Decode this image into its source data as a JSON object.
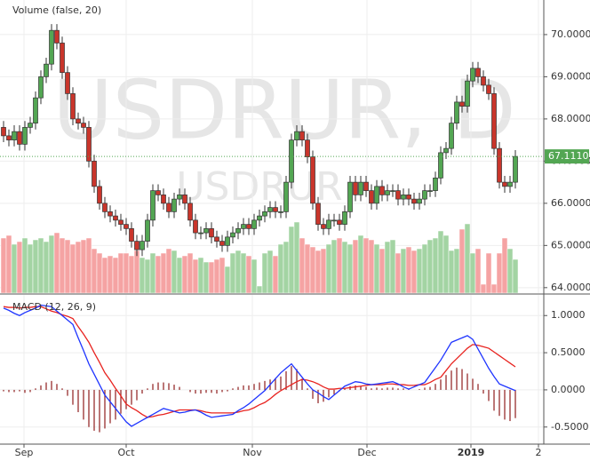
{
  "chart_data": [
    {
      "type": "candlestick",
      "watermark": {
        "symbol_interval": "USDRUR, D",
        "symbol": "USDRUR"
      },
      "indicator_label": "Volume (false, 20)",
      "x_labels": [
        "Sep",
        "Oct",
        "Nov",
        "Dec",
        "2019",
        "2"
      ],
      "series": {
        "open": [
          67.8,
          67.6,
          67.5,
          67.7,
          67.4,
          67.8,
          67.9,
          68.5,
          69.0,
          69.3,
          70.1,
          69.8,
          69.1,
          68.6,
          68.0,
          67.9,
          67.8,
          67.0,
          66.4,
          66.0,
          65.8,
          65.7,
          65.6,
          65.5,
          65.4,
          65.1,
          64.9,
          65.1,
          65.6,
          66.3,
          66.2,
          66.0,
          65.8,
          66.1,
          66.2,
          66.0,
          65.6,
          65.3,
          65.3,
          65.4,
          65.2,
          65.1,
          65.0,
          65.2,
          65.3,
          65.4,
          65.5,
          65.4,
          65.6,
          65.7,
          65.8,
          65.9,
          65.8,
          65.8,
          66.5,
          67.5,
          67.7,
          67.5,
          67.1,
          66.0,
          65.5,
          65.4,
          65.6,
          65.6,
          65.5,
          65.8,
          66.5,
          66.2,
          66.5,
          66.3,
          66.0,
          66.4,
          66.2,
          66.3,
          66.3,
          66.1,
          66.2,
          66.1,
          66.0,
          66.1,
          66.3,
          66.3,
          66.6,
          67.2,
          67.3,
          67.9,
          68.4,
          68.3,
          68.9,
          69.2,
          69.0,
          68.8,
          68.6,
          67.3,
          66.5,
          66.4,
          66.5
        ],
        "high": [
          67.95,
          67.75,
          67.85,
          67.85,
          67.95,
          68.05,
          68.65,
          69.15,
          69.45,
          70.25,
          70.25,
          69.95,
          69.25,
          68.75,
          68.15,
          68.05,
          67.95,
          67.15,
          66.55,
          66.15,
          65.95,
          65.85,
          65.75,
          65.65,
          65.55,
          65.25,
          65.25,
          65.75,
          66.45,
          66.45,
          66.35,
          66.15,
          66.25,
          66.35,
          66.35,
          66.15,
          65.75,
          65.45,
          65.55,
          65.55,
          65.35,
          65.25,
          65.35,
          65.45,
          65.55,
          65.65,
          65.65,
          65.75,
          65.85,
          65.95,
          66.05,
          66.05,
          65.95,
          66.65,
          67.65,
          67.85,
          67.85,
          67.65,
          67.25,
          66.15,
          65.65,
          65.75,
          65.75,
          65.75,
          65.95,
          66.65,
          66.65,
          66.65,
          66.65,
          66.45,
          66.55,
          66.55,
          66.45,
          66.45,
          66.45,
          66.35,
          66.35,
          66.25,
          66.25,
          66.45,
          66.45,
          66.75,
          67.35,
          67.45,
          68.05,
          68.55,
          68.55,
          69.05,
          69.35,
          69.35,
          69.15,
          68.95,
          68.75,
          67.45,
          66.65,
          66.65,
          67.26
        ],
        "low": [
          67.45,
          67.35,
          67.35,
          67.25,
          67.25,
          67.65,
          67.75,
          68.35,
          68.85,
          69.15,
          69.65,
          68.95,
          68.45,
          67.85,
          67.75,
          67.65,
          66.85,
          66.25,
          65.85,
          65.65,
          65.55,
          65.45,
          65.35,
          65.25,
          64.95,
          64.75,
          64.75,
          64.95,
          65.45,
          66.05,
          65.85,
          65.65,
          65.65,
          65.95,
          65.85,
          65.45,
          65.15,
          65.15,
          65.15,
          65.05,
          64.95,
          64.85,
          64.85,
          65.05,
          65.15,
          65.25,
          65.25,
          65.25,
          65.45,
          65.55,
          65.65,
          65.65,
          65.65,
          65.65,
          66.35,
          67.35,
          67.35,
          66.95,
          65.85,
          65.35,
          65.25,
          65.25,
          65.45,
          65.35,
          65.35,
          65.65,
          66.05,
          66.05,
          66.15,
          65.85,
          65.85,
          66.05,
          66.05,
          66.15,
          65.95,
          65.95,
          65.95,
          65.85,
          65.85,
          65.95,
          66.15,
          66.15,
          66.45,
          67.05,
          67.15,
          67.75,
          68.15,
          68.15,
          68.75,
          68.85,
          68.65,
          68.45,
          67.15,
          66.35,
          66.25,
          66.25,
          66.35
        ],
        "close": [
          67.6,
          67.5,
          67.7,
          67.4,
          67.8,
          67.9,
          68.5,
          69.0,
          69.3,
          70.1,
          69.8,
          69.1,
          68.6,
          68.0,
          67.9,
          67.8,
          67.0,
          66.4,
          66.0,
          65.8,
          65.7,
          65.6,
          65.5,
          65.4,
          65.1,
          64.9,
          65.1,
          65.6,
          66.3,
          66.2,
          66.0,
          65.8,
          66.1,
          66.2,
          66.0,
          65.6,
          65.3,
          65.3,
          65.4,
          65.2,
          65.1,
          65.0,
          65.2,
          65.3,
          65.4,
          65.5,
          65.4,
          65.6,
          65.7,
          65.8,
          65.9,
          65.8,
          65.8,
          66.5,
          67.5,
          67.7,
          67.5,
          67.1,
          66.0,
          65.5,
          65.4,
          65.6,
          65.6,
          65.5,
          65.8,
          66.5,
          66.2,
          66.5,
          66.3,
          66.0,
          66.4,
          66.2,
          66.3,
          66.3,
          66.1,
          66.2,
          66.1,
          66.0,
          66.1,
          66.3,
          66.3,
          66.6,
          67.2,
          67.3,
          67.9,
          68.4,
          68.3,
          68.9,
          69.2,
          69.0,
          68.8,
          68.6,
          67.3,
          66.5,
          66.4,
          66.5,
          67.111
        ]
      },
      "up_color": "#53a653",
      "down_color": "#c9352b",
      "volume": {
        "up_color": "#a3d4a3",
        "down_color": "#f5a3a3",
        "values": [
          62,
          65,
          55,
          58,
          62,
          55,
          60,
          62,
          58,
          65,
          68,
          62,
          60,
          55,
          58,
          60,
          62,
          50,
          45,
          40,
          42,
          40,
          45,
          45,
          42,
          48,
          40,
          38,
          45,
          42,
          45,
          50,
          48,
          40,
          42,
          45,
          38,
          40,
          35,
          35,
          38,
          40,
          30,
          45,
          48,
          45,
          42,
          38,
          8,
          45,
          48,
          42,
          55,
          58,
          75,
          80,
          62,
          55,
          52,
          48,
          50,
          55,
          60,
          62,
          58,
          55,
          60,
          65,
          62,
          60,
          55,
          50,
          58,
          60,
          45,
          50,
          52,
          48,
          50,
          55,
          60,
          62,
          70,
          65,
          48,
          50,
          72,
          78,
          45,
          50,
          10,
          45,
          10,
          45,
          62,
          50,
          38
        ]
      },
      "last_price": {
        "value": 67.111,
        "label": "67.1110",
        "color": "#53a653"
      },
      "ylim": [
        63.87,
        70.82
      ],
      "yticks": [
        {
          "value": 64,
          "label": "64.0000"
        },
        {
          "value": 65,
          "label": "65.0000"
        },
        {
          "value": 66,
          "label": "66.0000"
        },
        {
          "value": 67,
          "label": "67.0000"
        },
        {
          "value": 68,
          "label": "68.0000"
        },
        {
          "value": 69,
          "label": "69.0000"
        },
        {
          "value": 70,
          "label": "70.0000"
        }
      ],
      "grid": true
    },
    {
      "type": "macd",
      "indicator_label": "MACD (12, 26, 9)",
      "macd": {
        "color": "#1f35ff",
        "values": [
          1.1,
          1.07,
          1.03,
          1.0,
          1.04,
          1.07,
          1.1,
          1.14,
          1.13,
          1.12,
          1.06,
          1.0,
          0.94,
          0.88,
          0.7,
          0.53,
          0.35,
          0.21,
          0.07,
          -0.07,
          -0.16,
          -0.25,
          -0.34,
          -0.43,
          -0.49,
          -0.45,
          -0.41,
          -0.37,
          -0.33,
          -0.29,
          -0.25,
          -0.27,
          -0.29,
          -0.31,
          -0.3,
          -0.28,
          -0.27,
          -0.3,
          -0.34,
          -0.37,
          -0.36,
          -0.35,
          -0.34,
          -0.33,
          -0.28,
          -0.24,
          -0.19,
          -0.13,
          -0.07,
          -0.01,
          0.07,
          0.15,
          0.23,
          0.29,
          0.35,
          0.26,
          0.17,
          0.08,
          0.0,
          -0.04,
          -0.09,
          -0.13,
          -0.07,
          -0.01,
          0.05,
          0.08,
          0.11,
          0.1,
          0.08,
          0.07,
          0.08,
          0.09,
          0.1,
          0.11,
          0.08,
          0.04,
          0.01,
          0.04,
          0.07,
          0.1,
          0.2,
          0.3,
          0.4,
          0.52,
          0.64,
          0.67,
          0.7,
          0.73,
          0.68,
          0.55,
          0.42,
          0.29,
          0.18,
          0.08,
          0.05,
          0.02,
          -0.01
        ]
      },
      "signal": {
        "color": "#e8231f",
        "values": [
          1.12,
          1.11,
          1.11,
          1.1,
          1.11,
          1.11,
          1.12,
          1.12,
          1.09,
          1.06,
          1.04,
          1.01,
          0.99,
          0.96,
          0.85,
          0.75,
          0.64,
          0.5,
          0.37,
          0.23,
          0.13,
          0.02,
          -0.08,
          -0.19,
          -0.24,
          -0.28,
          -0.33,
          -0.37,
          -0.36,
          -0.34,
          -0.33,
          -0.31,
          -0.29,
          -0.27,
          -0.27,
          -0.27,
          -0.27,
          -0.28,
          -0.3,
          -0.31,
          -0.31,
          -0.31,
          -0.31,
          -0.31,
          -0.3,
          -0.28,
          -0.27,
          -0.24,
          -0.2,
          -0.17,
          -0.12,
          -0.06,
          -0.01,
          0.03,
          0.07,
          0.11,
          0.14,
          0.13,
          0.11,
          0.08,
          0.04,
          0.01,
          0.01,
          0.02,
          0.02,
          0.03,
          0.04,
          0.05,
          0.06,
          0.07,
          0.07,
          0.07,
          0.08,
          0.08,
          0.07,
          0.07,
          0.06,
          0.06,
          0.07,
          0.07,
          0.1,
          0.14,
          0.17,
          0.26,
          0.35,
          0.42,
          0.49,
          0.56,
          0.61,
          0.6,
          0.58,
          0.56,
          0.51,
          0.46,
          0.41,
          0.36,
          0.31
        ]
      },
      "histogram": {
        "color": "#8e1c1c",
        "values": [
          -0.02,
          -0.03,
          -0.03,
          -0.02,
          -0.04,
          -0.03,
          0.02,
          0.06,
          0.1,
          0.12,
          0.08,
          0.02,
          -0.08,
          -0.2,
          -0.3,
          -0.4,
          -0.5,
          -0.55,
          -0.57,
          -0.52,
          -0.45,
          -0.4,
          -0.32,
          -0.26,
          -0.2,
          -0.14,
          -0.05,
          0.02,
          0.08,
          0.1,
          0.1,
          0.09,
          0.07,
          0.04,
          0.0,
          -0.03,
          -0.05,
          -0.05,
          -0.04,
          -0.04,
          -0.05,
          -0.03,
          -0.02,
          0.02,
          0.04,
          0.06,
          0.06,
          0.08,
          0.1,
          0.12,
          0.14,
          0.16,
          0.18,
          0.25,
          0.32,
          0.28,
          0.15,
          0.02,
          -0.12,
          -0.18,
          -0.16,
          -0.1,
          -0.06,
          -0.02,
          0.02,
          0.05,
          0.06,
          0.05,
          0.04,
          0.02,
          0.03,
          0.02,
          0.03,
          0.03,
          0.02,
          0.02,
          0.01,
          0.0,
          0.01,
          0.03,
          0.04,
          0.08,
          0.14,
          0.2,
          0.26,
          0.3,
          0.28,
          0.22,
          0.15,
          0.08,
          -0.05,
          -0.15,
          -0.28,
          -0.35,
          -0.4,
          -0.42,
          -0.38
        ]
      },
      "ylim": [
        -0.73,
        1.23
      ],
      "yticks": [
        {
          "value": -0.5,
          "label": "-0.5000"
        },
        {
          "value": 0,
          "label": "0.0000"
        },
        {
          "value": 0.5,
          "label": "0.5000"
        },
        {
          "value": 1,
          "label": "1.0000"
        }
      ],
      "grid": true
    }
  ]
}
